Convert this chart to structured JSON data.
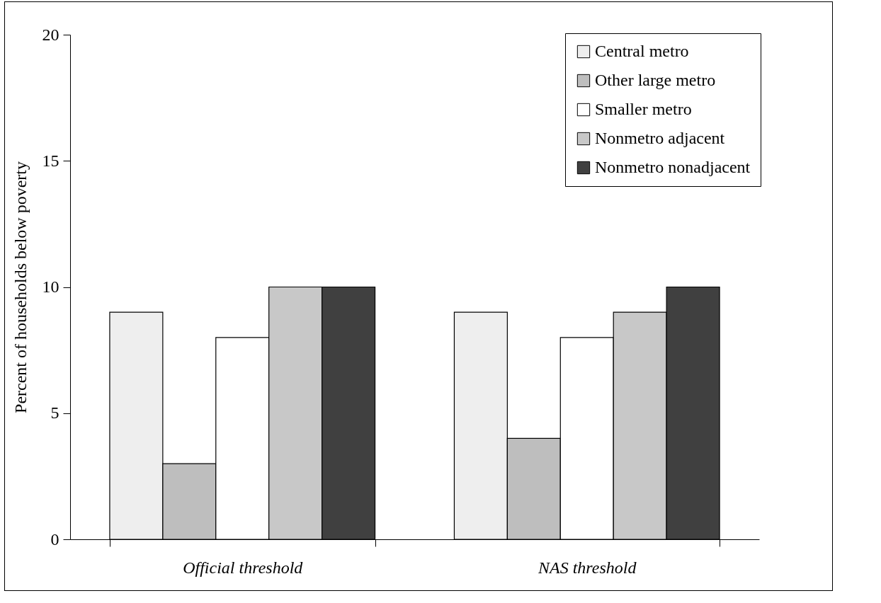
{
  "chart_data": {
    "type": "bar",
    "ylabel": "Percent of households below poverty",
    "categories": [
      "Official threshold",
      "NAS threshold"
    ],
    "series": [
      {
        "name": "Central metro",
        "color": "#eeeeee",
        "values": [
          9,
          9
        ]
      },
      {
        "name": "Other large metro",
        "color": "#bebebe",
        "values": [
          3,
          4
        ]
      },
      {
        "name": "Smaller metro",
        "color": "#ffffff",
        "values": [
          8,
          8
        ]
      },
      {
        "name": "Nonmetro adjacent",
        "color": "#c8c8c8",
        "values": [
          10,
          9
        ]
      },
      {
        "name": "Nonmetro nonadjacent",
        "color": "#404040",
        "values": [
          10,
          10
        ]
      }
    ],
    "ylim": [
      0,
      20
    ],
    "yticks": [
      0,
      5,
      10,
      15,
      20
    ],
    "grid": false,
    "legend": "top right"
  }
}
